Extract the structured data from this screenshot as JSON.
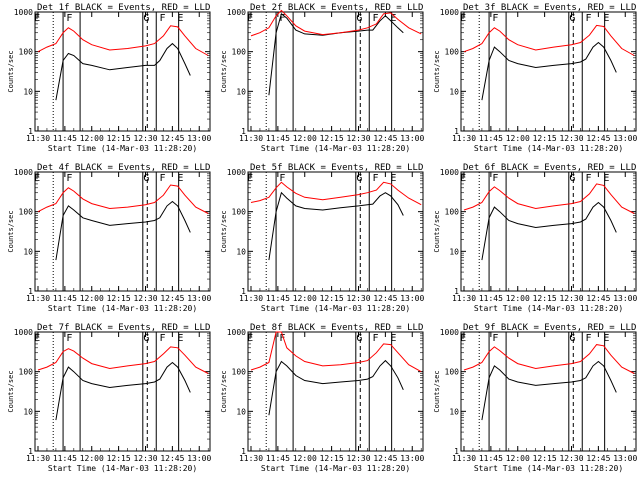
{
  "chart_data": [
    {
      "type": "line",
      "title": "Det 1f BLACK = Events, RED = LLD",
      "ylabel": "Counts/sec",
      "xlabel": "Start Time (14-Mar-03 11:28:20)",
      "x_ticks": [
        "11:30",
        "11:45",
        "12:00",
        "12:15",
        "12:30",
        "12:45",
        "13:00"
      ],
      "y_ticks": [
        "1",
        "10",
        "100",
        "1000"
      ],
      "yscale": "log",
      "ylim": [
        1,
        1000
      ],
      "xlim": [
        "11:28:20",
        "13:06:00"
      ],
      "markers": [
        "E",
        "F",
        "G",
        "F",
        "E"
      ],
      "series": [
        {
          "name": "Events",
          "color": "#000000",
          "x": [
            "11:40",
            "11:44",
            "11:47",
            "11:50",
            "11:55",
            "12:00",
            "12:10",
            "12:20",
            "12:30",
            "12:35",
            "12:38",
            "12:42",
            "12:45",
            "12:48",
            "12:52",
            "12:55"
          ],
          "y": [
            6,
            60,
            90,
            80,
            50,
            45,
            35,
            40,
            45,
            45,
            60,
            120,
            160,
            120,
            50,
            25
          ]
        },
        {
          "name": "LLD",
          "color": "#ff0000",
          "x": [
            "11:30",
            "11:35",
            "11:40",
            "11:44",
            "11:47",
            "11:50",
            "11:55",
            "12:00",
            "12:10",
            "12:20",
            "12:30",
            "12:35",
            "12:40",
            "12:44",
            "12:48",
            "12:52",
            "12:58",
            "13:05"
          ],
          "y": [
            100,
            130,
            160,
            300,
            400,
            330,
            200,
            150,
            110,
            120,
            140,
            160,
            250,
            450,
            420,
            250,
            120,
            80
          ]
        }
      ]
    },
    {
      "type": "line",
      "title": "Det 2f BLACK = Events, RED = LLD",
      "ylabel": "Counts/sec",
      "xlabel": "Start Time (14-Mar-03 11:28:20)",
      "x_ticks": [
        "11:30",
        "11:45",
        "12:00",
        "12:15",
        "12:30",
        "12:45",
        "13:00"
      ],
      "y_ticks": [
        "1",
        "10",
        "100",
        "1000"
      ],
      "yscale": "log",
      "ylim": [
        1,
        1000
      ],
      "xlim": [
        "11:28:20",
        "13:06:00"
      ],
      "markers": [
        "E",
        "F",
        "G",
        "F",
        "E"
      ],
      "series": [
        {
          "name": "Events",
          "color": "#000000",
          "x": [
            "11:40",
            "11:44",
            "11:47",
            "11:50",
            "11:55",
            "12:00",
            "12:10",
            "12:20",
            "12:30",
            "12:35",
            "12:38",
            "12:42",
            "12:45",
            "12:48",
            "12:52",
            "12:55"
          ],
          "y": [
            8,
            300,
            900,
            700,
            350,
            280,
            260,
            300,
            330,
            350,
            350,
            600,
            800,
            600,
            400,
            300
          ]
        },
        {
          "name": "LLD",
          "color": "#ff0000",
          "x": [
            "11:30",
            "11:35",
            "11:40",
            "11:44",
            "11:47",
            "11:50",
            "11:55",
            "12:00",
            "12:10",
            "12:20",
            "12:30",
            "12:35",
            "12:40",
            "12:44",
            "12:48",
            "12:52",
            "12:58",
            "13:05"
          ],
          "y": [
            250,
            300,
            400,
            800,
            1100,
            800,
            450,
            330,
            270,
            300,
            350,
            400,
            500,
            900,
            950,
            650,
            400,
            280
          ]
        }
      ]
    },
    {
      "type": "line",
      "title": "Det 3f BLACK = Events, RED = LLD",
      "ylabel": "Counts/sec",
      "xlabel": "Start Time (14-Mar-03 11:28:20)",
      "x_ticks": [
        "11:30",
        "11:45",
        "12:00",
        "12:15",
        "12:30",
        "12:45",
        "13:00"
      ],
      "y_ticks": [
        "1",
        "10",
        "100",
        "1000"
      ],
      "yscale": "log",
      "ylim": [
        1,
        1000
      ],
      "xlim": [
        "11:28:20",
        "13:06:00"
      ],
      "markers": [
        "E",
        "F",
        "G",
        "F",
        "E"
      ],
      "series": [
        {
          "name": "Events",
          "color": "#000000",
          "x": [
            "11:40",
            "11:44",
            "11:47",
            "11:50",
            "11:55",
            "12:00",
            "12:10",
            "12:20",
            "12:30",
            "12:35",
            "12:38",
            "12:42",
            "12:45",
            "12:48",
            "12:52",
            "12:55"
          ],
          "y": [
            6,
            60,
            130,
            100,
            60,
            50,
            40,
            45,
            50,
            55,
            65,
            130,
            170,
            130,
            60,
            30
          ]
        },
        {
          "name": "LLD",
          "color": "#ff0000",
          "x": [
            "11:30",
            "11:35",
            "11:40",
            "11:44",
            "11:47",
            "11:50",
            "11:55",
            "12:00",
            "12:10",
            "12:20",
            "12:30",
            "12:35",
            "12:40",
            "12:44",
            "12:48",
            "12:52",
            "12:58",
            "13:05"
          ],
          "y": [
            100,
            120,
            160,
            300,
            400,
            330,
            200,
            150,
            110,
            130,
            150,
            170,
            260,
            460,
            430,
            250,
            120,
            80
          ]
        }
      ]
    },
    {
      "type": "line",
      "title": "Det 4f BLACK = Events, RED = LLD",
      "ylabel": "Counts/sec",
      "xlabel": "Start Time (14-Mar-03 11:28:20)",
      "x_ticks": [
        "11:30",
        "11:45",
        "12:00",
        "12:15",
        "12:30",
        "12:45",
        "13:00"
      ],
      "y_ticks": [
        "1",
        "10",
        "100",
        "1000"
      ],
      "yscale": "log",
      "ylim": [
        1,
        1000
      ],
      "xlim": [
        "11:28:20",
        "13:06:00"
      ],
      "markers": [
        "E",
        "F",
        "G",
        "F",
        "E"
      ],
      "series": [
        {
          "name": "Events",
          "color": "#000000",
          "x": [
            "11:40",
            "11:44",
            "11:47",
            "11:50",
            "11:55",
            "12:00",
            "12:10",
            "12:20",
            "12:30",
            "12:35",
            "12:38",
            "12:42",
            "12:45",
            "12:48",
            "12:52",
            "12:55"
          ],
          "y": [
            6,
            80,
            140,
            110,
            70,
            60,
            45,
            50,
            55,
            60,
            70,
            140,
            180,
            140,
            60,
            30
          ]
        },
        {
          "name": "LLD",
          "color": "#ff0000",
          "x": [
            "11:30",
            "11:35",
            "11:40",
            "11:44",
            "11:47",
            "11:50",
            "11:55",
            "12:00",
            "12:10",
            "12:20",
            "12:30",
            "12:35",
            "12:40",
            "12:44",
            "12:48",
            "12:52",
            "12:58",
            "13:05"
          ],
          "y": [
            100,
            130,
            160,
            300,
            400,
            330,
            210,
            160,
            120,
            130,
            150,
            170,
            260,
            470,
            440,
            260,
            130,
            90
          ]
        }
      ]
    },
    {
      "type": "line",
      "title": "Det 5f BLACK = Events, RED = LLD",
      "ylabel": "Counts/sec",
      "xlabel": "Start Time (14-Mar-03 11:28:20)",
      "x_ticks": [
        "11:30",
        "11:45",
        "12:00",
        "12:15",
        "12:30",
        "12:45",
        "13:00"
      ],
      "y_ticks": [
        "1",
        "10",
        "100",
        "1000"
      ],
      "yscale": "log",
      "ylim": [
        1,
        1000
      ],
      "xlim": [
        "11:28:20",
        "13:06:00"
      ],
      "markers": [
        "E",
        "F",
        "G",
        "F",
        "E"
      ],
      "series": [
        {
          "name": "Events",
          "color": "#000000",
          "x": [
            "11:40",
            "11:44",
            "11:47",
            "11:50",
            "11:55",
            "12:00",
            "12:10",
            "12:20",
            "12:30",
            "12:35",
            "12:38",
            "12:42",
            "12:45",
            "12:48",
            "12:52",
            "12:55"
          ],
          "y": [
            6,
            100,
            300,
            220,
            140,
            120,
            110,
            125,
            140,
            150,
            155,
            250,
            300,
            250,
            150,
            80
          ]
        },
        {
          "name": "LLD",
          "color": "#ff0000",
          "x": [
            "11:30",
            "11:35",
            "11:40",
            "11:44",
            "11:47",
            "11:50",
            "11:55",
            "12:00",
            "12:10",
            "12:20",
            "12:30",
            "12:35",
            "12:40",
            "12:44",
            "12:48",
            "12:52",
            "12:58",
            "13:05"
          ],
          "y": [
            170,
            190,
            230,
            400,
            550,
            420,
            290,
            230,
            200,
            230,
            270,
            300,
            350,
            550,
            500,
            350,
            220,
            150
          ]
        }
      ]
    },
    {
      "type": "line",
      "title": "Det 6f BLACK = Events, RED = LLD",
      "ylabel": "Counts/sec",
      "xlabel": "Start Time (14-Mar-03 11:28:20)",
      "x_ticks": [
        "11:30",
        "11:45",
        "12:00",
        "12:15",
        "12:30",
        "12:45",
        "13:00"
      ],
      "y_ticks": [
        "1",
        "10",
        "100",
        "1000"
      ],
      "yscale": "log",
      "ylim": [
        1,
        1000
      ],
      "xlim": [
        "11:28:20",
        "13:06:00"
      ],
      "markers": [
        "E",
        "F",
        "G",
        "F",
        "E"
      ],
      "series": [
        {
          "name": "Events",
          "color": "#000000",
          "x": [
            "11:40",
            "11:44",
            "11:47",
            "11:50",
            "11:55",
            "12:00",
            "12:10",
            "12:20",
            "12:30",
            "12:35",
            "12:38",
            "12:42",
            "12:45",
            "12:48",
            "12:52",
            "12:55"
          ],
          "y": [
            6,
            70,
            130,
            100,
            60,
            50,
            40,
            45,
            50,
            55,
            65,
            130,
            170,
            130,
            60,
            30
          ]
        },
        {
          "name": "LLD",
          "color": "#ff0000",
          "x": [
            "11:30",
            "11:35",
            "11:40",
            "11:44",
            "11:47",
            "11:50",
            "11:55",
            "12:00",
            "12:10",
            "12:20",
            "12:30",
            "12:35",
            "12:40",
            "12:44",
            "12:48",
            "12:52",
            "12:58",
            "13:05"
          ],
          "y": [
            110,
            130,
            170,
            320,
            420,
            340,
            220,
            160,
            120,
            140,
            160,
            180,
            280,
            500,
            460,
            270,
            130,
            90
          ]
        }
      ]
    },
    {
      "type": "line",
      "title": "Det 7f BLACK = Events, RED = LLD",
      "ylabel": "Counts/sec",
      "xlabel": "Start Time (14-Mar-03 11:28:20)",
      "x_ticks": [
        "11:30",
        "11:45",
        "12:00",
        "12:15",
        "12:30",
        "12:45",
        "13:00"
      ],
      "y_ticks": [
        "1",
        "10",
        "100",
        "1000"
      ],
      "yscale": "log",
      "ylim": [
        1,
        1000
      ],
      "xlim": [
        "11:28:20",
        "13:06:00"
      ],
      "markers": [
        "E",
        "F",
        "G",
        "F",
        "E"
      ],
      "series": [
        {
          "name": "Events",
          "color": "#000000",
          "x": [
            "11:40",
            "11:44",
            "11:47",
            "11:50",
            "11:55",
            "12:00",
            "12:10",
            "12:20",
            "12:30",
            "12:35",
            "12:38",
            "12:42",
            "12:45",
            "12:48",
            "12:52",
            "12:55"
          ],
          "y": [
            6,
            70,
            130,
            100,
            60,
            50,
            40,
            45,
            50,
            55,
            65,
            130,
            170,
            130,
            60,
            30
          ]
        },
        {
          "name": "LLD",
          "color": "#ff0000",
          "x": [
            "11:30",
            "11:35",
            "11:40",
            "11:44",
            "11:47",
            "11:50",
            "11:55",
            "12:00",
            "12:10",
            "12:20",
            "12:30",
            "12:35",
            "12:40",
            "12:44",
            "12:48",
            "12:52",
            "12:58",
            "13:05"
          ],
          "y": [
            110,
            130,
            170,
            320,
            380,
            330,
            220,
            160,
            120,
            140,
            160,
            180,
            280,
            420,
            400,
            260,
            130,
            90
          ]
        }
      ]
    },
    {
      "type": "line",
      "title": "Det 8f BLACK = Events, RED = LLD",
      "ylabel": "Counts/sec",
      "xlabel": "Start Time (14-Mar-03 11:28:20)",
      "x_ticks": [
        "11:30",
        "11:45",
        "12:00",
        "12:15",
        "12:30",
        "12:45",
        "13:00"
      ],
      "y_ticks": [
        "1",
        "10",
        "100",
        "1000"
      ],
      "yscale": "log",
      "ylim": [
        1,
        1000
      ],
      "xlim": [
        "11:28:20",
        "13:06:00"
      ],
      "markers": [
        "E",
        "F",
        "G",
        "F",
        "E"
      ],
      "series": [
        {
          "name": "Events",
          "color": "#000000",
          "x": [
            "11:40",
            "11:44",
            "11:47",
            "11:50",
            "11:55",
            "12:00",
            "12:10",
            "12:20",
            "12:30",
            "12:35",
            "12:38",
            "12:42",
            "12:45",
            "12:48",
            "12:52",
            "12:55"
          ],
          "y": [
            8,
            100,
            180,
            140,
            80,
            60,
            50,
            55,
            60,
            65,
            75,
            140,
            190,
            140,
            70,
            35
          ]
        },
        {
          "name": "LLD",
          "color": "#ff0000",
          "x": [
            "11:30",
            "11:35",
            "11:40",
            "11:44",
            "11:47",
            "11:50",
            "11:55",
            "12:00",
            "12:10",
            "12:20",
            "12:30",
            "12:35",
            "12:40",
            "12:44",
            "12:48",
            "12:52",
            "12:58",
            "13:05"
          ],
          "y": [
            110,
            130,
            170,
            1000,
            1000,
            400,
            250,
            180,
            140,
            150,
            170,
            190,
            300,
            500,
            480,
            300,
            150,
            100
          ]
        }
      ]
    },
    {
      "type": "line",
      "title": "Det 9f BLACK = Events, RED = LLD",
      "ylabel": "Counts/sec",
      "xlabel": "Start Time (14-Mar-03 11:28:20)",
      "x_ticks": [
        "11:30",
        "11:45",
        "12:00",
        "12:15",
        "12:30",
        "12:45",
        "13:00"
      ],
      "y_ticks": [
        "1",
        "10",
        "100",
        "1000"
      ],
      "yscale": "log",
      "ylim": [
        1,
        1000
      ],
      "xlim": [
        "11:28:20",
        "13:06:00"
      ],
      "markers": [
        "E",
        "F",
        "G",
        "F",
        "E"
      ],
      "series": [
        {
          "name": "Events",
          "color": "#000000",
          "x": [
            "11:40",
            "11:44",
            "11:47",
            "11:50",
            "11:55",
            "12:00",
            "12:10",
            "12:20",
            "12:30",
            "12:35",
            "12:38",
            "12:42",
            "12:45",
            "12:48",
            "12:52",
            "12:55"
          ],
          "y": [
            6,
            70,
            140,
            110,
            65,
            55,
            45,
            50,
            55,
            60,
            70,
            140,
            180,
            140,
            60,
            30
          ]
        },
        {
          "name": "LLD",
          "color": "#ff0000",
          "x": [
            "11:30",
            "11:35",
            "11:40",
            "11:44",
            "11:47",
            "11:50",
            "11:55",
            "12:00",
            "12:10",
            "12:20",
            "12:30",
            "12:35",
            "12:40",
            "12:44",
            "12:48",
            "12:52",
            "12:58",
            "13:05"
          ],
          "y": [
            110,
            130,
            170,
            320,
            420,
            340,
            220,
            160,
            120,
            140,
            160,
            180,
            280,
            480,
            450,
            260,
            130,
            90
          ]
        }
      ]
    }
  ]
}
